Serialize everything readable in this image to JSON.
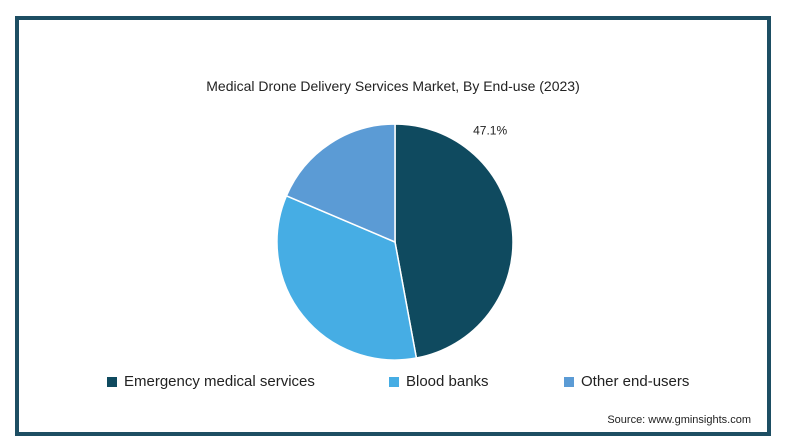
{
  "chart_data": {
    "type": "pie",
    "title": "Medical Drone Delivery Services Market, By End-use (2023)",
    "slices": [
      {
        "name": "Emergency medical services",
        "value": 47.1,
        "label": "47.1%",
        "color": "#0f4a5f"
      },
      {
        "name": "Blood banks",
        "value": 34.3,
        "label": "",
        "color": "#46ade4"
      },
      {
        "name": "Other end-users",
        "value": 18.6,
        "label": "",
        "color": "#5b9bd5"
      }
    ],
    "start_angle": "12 o'clock",
    "direction": "clockwise",
    "legend_position": "bottom"
  },
  "source": "Source: www.gminsights.com"
}
